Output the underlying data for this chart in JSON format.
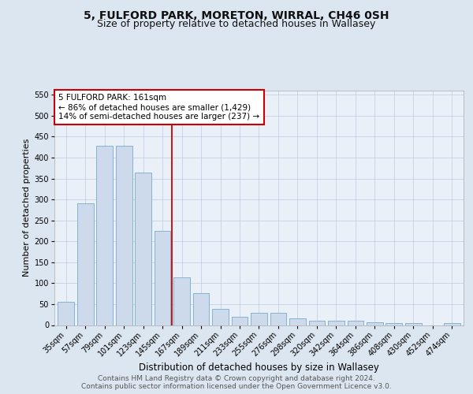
{
  "title1": "5, FULFORD PARK, MORETON, WIRRAL, CH46 0SH",
  "title2": "Size of property relative to detached houses in Wallasey",
  "xlabel": "Distribution of detached houses by size in Wallasey",
  "ylabel": "Number of detached properties",
  "categories": [
    "35sqm",
    "57sqm",
    "79sqm",
    "101sqm",
    "123sqm",
    "145sqm",
    "167sqm",
    "189sqm",
    "211sqm",
    "233sqm",
    "255sqm",
    "276sqm",
    "298sqm",
    "320sqm",
    "342sqm",
    "364sqm",
    "386sqm",
    "408sqm",
    "430sqm",
    "452sqm",
    "474sqm"
  ],
  "values": [
    55,
    290,
    428,
    428,
    365,
    225,
    113,
    76,
    38,
    20,
    29,
    29,
    16,
    10,
    10,
    10,
    6,
    5,
    5,
    0,
    5
  ],
  "bar_color": "#ccdaeb",
  "bar_edge_color": "#7aaac8",
  "vline_x_index": 5.5,
  "vline_color": "#cc0000",
  "annotation_text": "5 FULFORD PARK: 161sqm\n← 86% of detached houses are smaller (1,429)\n14% of semi-detached houses are larger (237) →",
  "annotation_box_color": "#ffffff",
  "annotation_box_edge": "#cc0000",
  "ylim": [
    0,
    560
  ],
  "yticks": [
    0,
    50,
    100,
    150,
    200,
    250,
    300,
    350,
    400,
    450,
    500,
    550
  ],
  "bg_color": "#dce6f0",
  "plot_bg_color": "#eaf0f8",
  "footer_text": "Contains HM Land Registry data © Crown copyright and database right 2024.\nContains public sector information licensed under the Open Government Licence v3.0.",
  "title1_fontsize": 10,
  "title2_fontsize": 9,
  "xlabel_fontsize": 8.5,
  "ylabel_fontsize": 8,
  "tick_fontsize": 7,
  "footer_fontsize": 6.5,
  "annot_fontsize": 7.5
}
